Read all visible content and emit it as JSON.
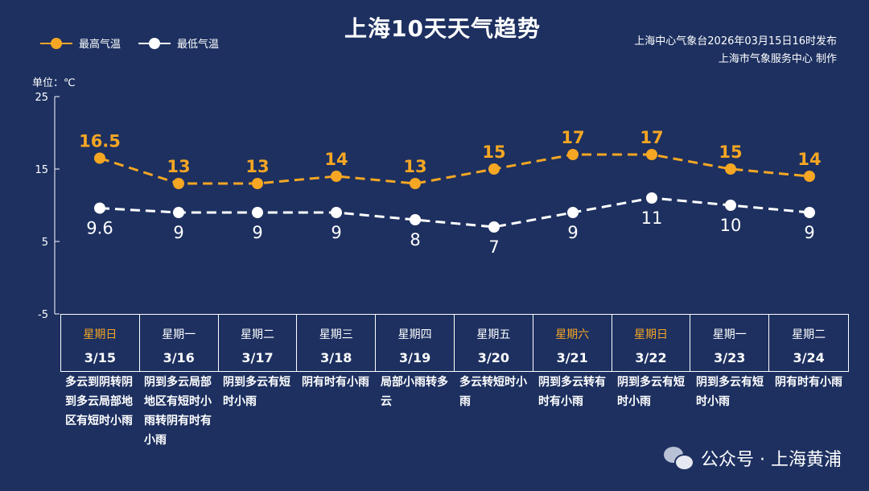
{
  "title": "上海10天天气趋势",
  "source": {
    "line1": "上海中心气象台2026年03月15日16时发布",
    "line2": "上海市气象服务中心  制作"
  },
  "unit_label": "单位：℃",
  "watermark": "公众号 · 上海黄浦",
  "colors": {
    "background": "#1d3060",
    "high": "#f5a623",
    "low": "#ffffff",
    "weekend": "#f5a623"
  },
  "chart_data": {
    "type": "line",
    "categories": [
      "3/15",
      "3/16",
      "3/17",
      "3/18",
      "3/19",
      "3/20",
      "3/21",
      "3/22",
      "3/23",
      "3/24"
    ],
    "series": [
      {
        "name": "最高气温",
        "values": [
          16.5,
          13,
          13,
          14,
          13,
          15,
          17,
          17,
          15,
          14
        ],
        "labels": [
          "16.5",
          "13",
          "13",
          "14",
          "13",
          "15",
          "17",
          "17",
          "15",
          "14"
        ],
        "color": "#f5a623"
      },
      {
        "name": "最低气温",
        "values": [
          9.6,
          9,
          9,
          9,
          8,
          7,
          9,
          11,
          10,
          9
        ],
        "labels": [
          "9.6",
          "9",
          "9",
          "9",
          "8",
          "7",
          "9",
          "11",
          "10",
          "9"
        ],
        "color": "#ffffff"
      }
    ],
    "ylim": [
      -5,
      25
    ],
    "yticks": [
      "-5",
      "5",
      "15",
      "25"
    ],
    "ylabel": "单位：℃",
    "legend": "top-left",
    "grid": false
  },
  "days": [
    {
      "weekday": "星期日",
      "date": "3/15",
      "weekend": true,
      "desc": "多云到阴转阴到多云局部地区有短时小雨"
    },
    {
      "weekday": "星期一",
      "date": "3/16",
      "weekend": false,
      "desc": "阴到多云局部地区有短时小雨转阴有时有小雨"
    },
    {
      "weekday": "星期二",
      "date": "3/17",
      "weekend": false,
      "desc": "阴到多云有短时小雨"
    },
    {
      "weekday": "星期三",
      "date": "3/18",
      "weekend": false,
      "desc": "阴有时有小雨"
    },
    {
      "weekday": "星期四",
      "date": "3/19",
      "weekend": false,
      "desc": "局部小雨转多云"
    },
    {
      "weekday": "星期五",
      "date": "3/20",
      "weekend": false,
      "desc": "多云转短时小雨"
    },
    {
      "weekday": "星期六",
      "date": "3/21",
      "weekend": true,
      "desc": "阴到多云转有时有小雨"
    },
    {
      "weekday": "星期日",
      "date": "3/22",
      "weekend": true,
      "desc": "阴到多云有短时小雨"
    },
    {
      "weekday": "星期一",
      "date": "3/23",
      "weekend": false,
      "desc": "阴到多云有短时小雨"
    },
    {
      "weekday": "星期二",
      "date": "3/24",
      "weekend": false,
      "desc": "阴有时有小雨"
    }
  ]
}
